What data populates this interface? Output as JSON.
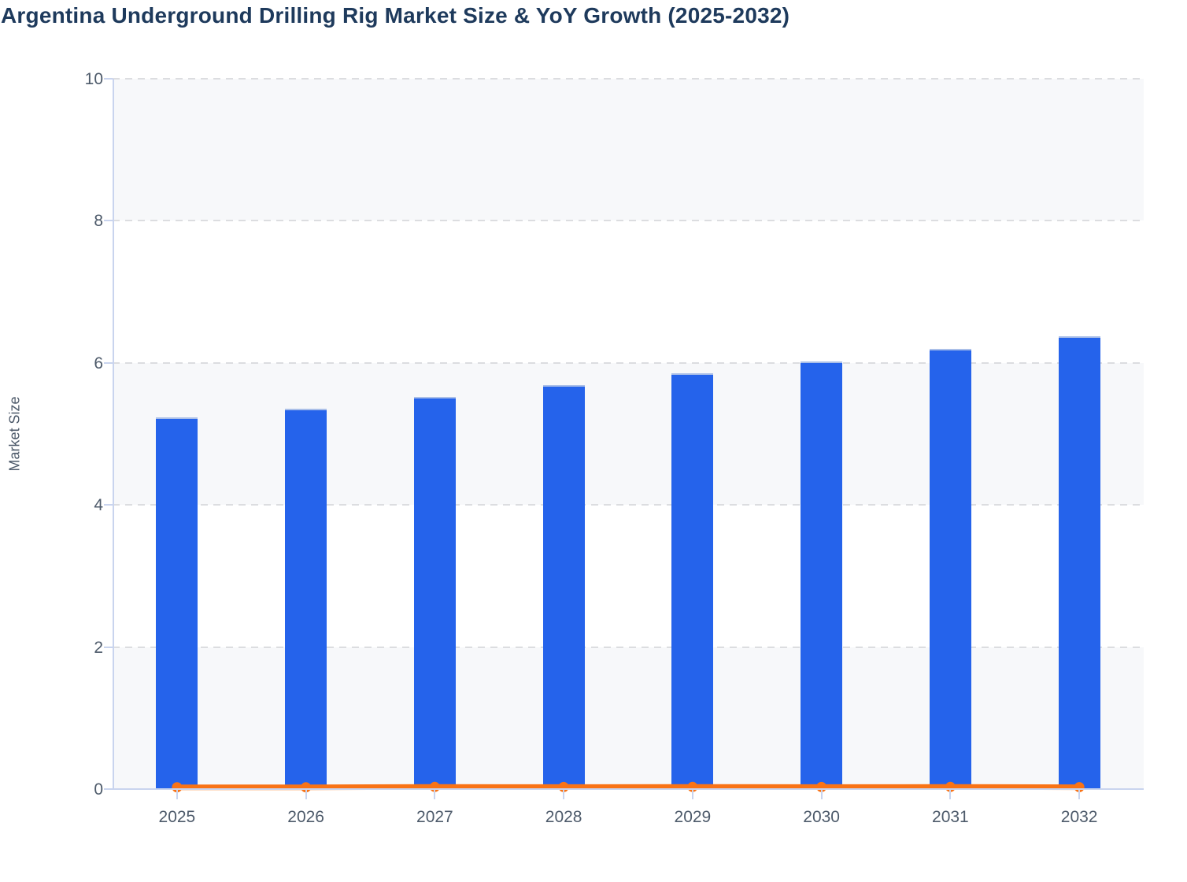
{
  "page": {
    "title": "Argentina Underground Drilling Rig Market Size & YoY Growth (2025-2032)"
  },
  "chart_data": {
    "type": "bar",
    "title": "Argentina Underground Drilling Rig Market Size & YoY Growth (2025-2032)",
    "categories": [
      "2025",
      "2026",
      "2027",
      "2028",
      "2029",
      "2030",
      "2031",
      "2032"
    ],
    "series": [
      {
        "name": "Market Size",
        "type": "bar",
        "color": "#2563eb",
        "values": [
          5.23,
          5.36,
          5.52,
          5.69,
          5.85,
          6.02,
          6.2,
          6.37
        ]
      },
      {
        "name": "YoY Growth",
        "type": "line",
        "color": "#f97316",
        "values": [
          0.025,
          0.025,
          0.03,
          0.029,
          0.03,
          0.029,
          0.03,
          0.027
        ]
      }
    ],
    "xlabel": "",
    "ylabel": "Market Size",
    "ylim": [
      0,
      10
    ],
    "yticks": [
      0,
      2,
      4,
      6,
      8,
      10
    ],
    "grid": "horizontal-dashed",
    "legend_position": "none",
    "plot_band_colors": [
      "#f7f8fa",
      "#ffffff"
    ]
  },
  "colors": {
    "title_text": "#1e3a5c",
    "axis_line": "#c9d4ee",
    "grid_line": "#dcdde0",
    "tick_label": "#4d5a6a",
    "bar_fill": "#2563eb",
    "line_stroke": "#f97316",
    "band_gray": "#f7f8fa",
    "background": "#ffffff"
  }
}
